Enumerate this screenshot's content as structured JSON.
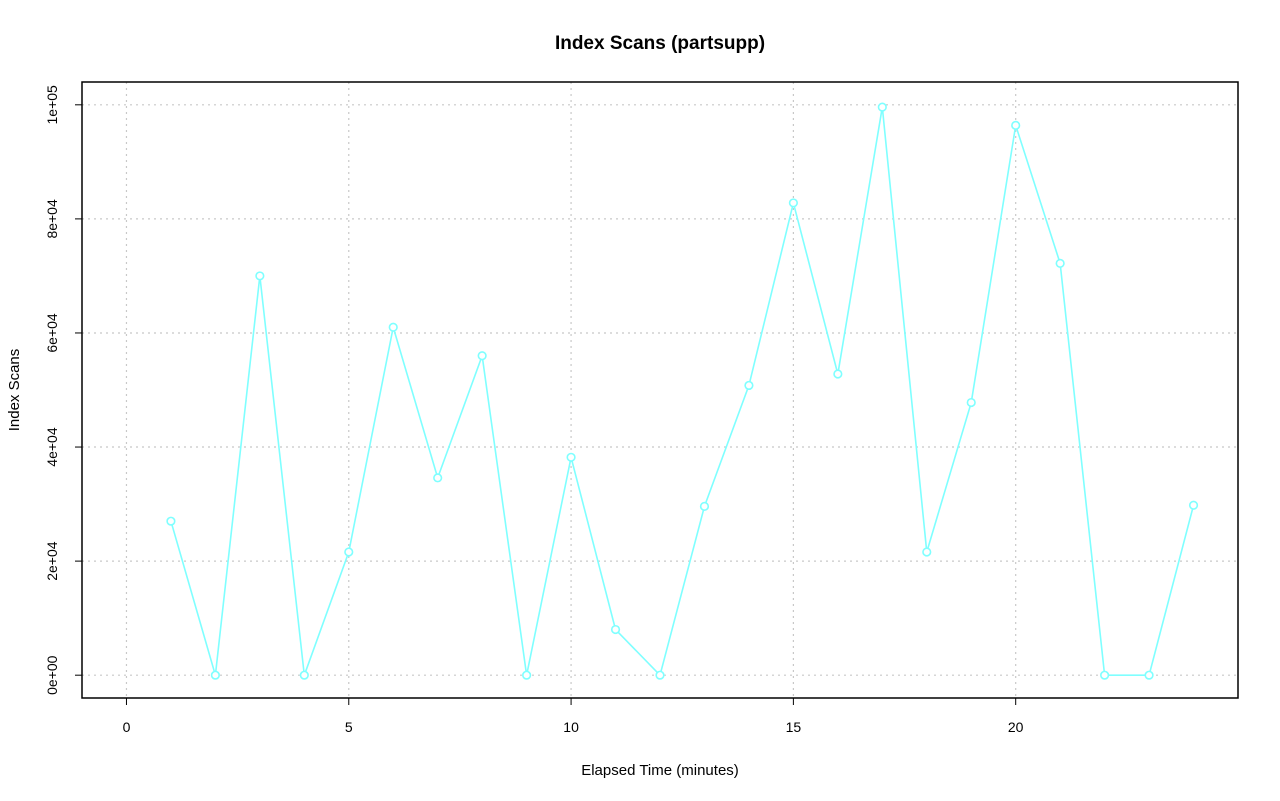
{
  "chart_data": {
    "type": "line",
    "title": "Index Scans (partsupp)",
    "xlabel": "Elapsed Time (minutes)",
    "ylabel": "Index Scans",
    "xlim": [
      -1,
      25
    ],
    "ylim": [
      -4000,
      104000
    ],
    "x_ticks": [
      0,
      5,
      10,
      15,
      20
    ],
    "x_tick_labels": [
      "0",
      "5",
      "10",
      "15",
      "20"
    ],
    "y_ticks": [
      0,
      20000,
      40000,
      60000,
      80000,
      100000
    ],
    "y_tick_labels": [
      "0e+00",
      "2e+04",
      "4e+04",
      "6e+04",
      "8e+04",
      "1e+05"
    ],
    "grid": true,
    "series": [
      {
        "color": "#7fffff",
        "marker": "circle",
        "x": [
          1,
          2,
          3,
          4,
          5,
          6,
          7,
          8,
          9,
          10,
          11,
          12,
          13,
          14,
          15,
          16,
          17,
          18,
          19,
          20,
          21,
          22,
          23,
          24
        ],
        "values": [
          27000,
          0,
          70000,
          0,
          21600,
          61000,
          34600,
          56000,
          0,
          38200,
          8000,
          0,
          29600,
          50800,
          82800,
          52800,
          99600,
          21600,
          47800,
          96400,
          72200,
          0,
          0,
          29800
        ]
      }
    ]
  }
}
